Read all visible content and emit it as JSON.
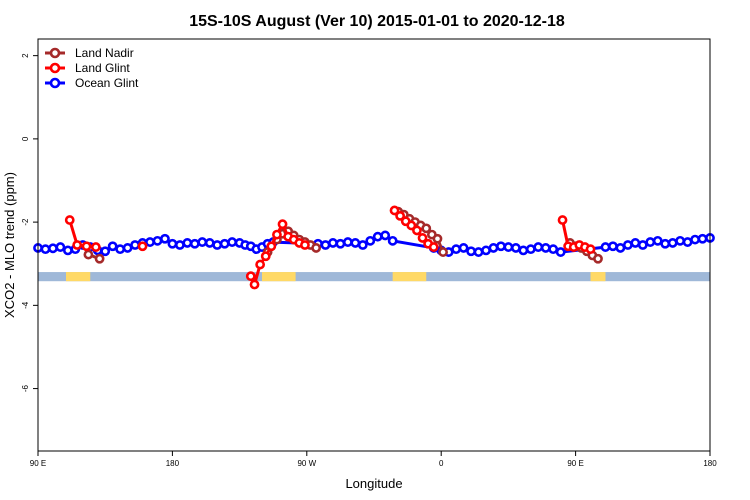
{
  "chart_data": {
    "type": "line",
    "title": "15S-10S August (Ver 10)   2015-01-01 to 2020-12-18",
    "xlabel": "Longitude",
    "ylabel": "XCO2 - MLO trend (ppm)",
    "xlim": [
      -180,
      180
    ],
    "ylim": [
      -7.5,
      2.4
    ],
    "x_ticks": [
      {
        "value": -180,
        "label": "90 E"
      },
      {
        "value": -108,
        "label": "180"
      },
      {
        "value": -36,
        "label": "90 W"
      },
      {
        "value": 36,
        "label": "0"
      },
      {
        "value": 108,
        "label": "90 E"
      },
      {
        "value": 180,
        "label": "180"
      }
    ],
    "y_ticks": [
      {
        "value": 2,
        "label": "2"
      },
      {
        "value": 0,
        "label": "0"
      },
      {
        "value": -2,
        "label": "-2"
      },
      {
        "value": -4,
        "label": "-4"
      },
      {
        "value": -6,
        "label": "-6"
      }
    ],
    "grid": false,
    "legend_position": "top-left",
    "series": [
      {
        "name": "Land Nadir",
        "color": "#a52a2a",
        "x": [
          -153,
          -147
        ],
        "y": [
          -2.78,
          -2.88
        ],
        "extra_segments": [
          {
            "x": [
              -57,
              -52,
              -49,
              -46,
              -43,
              -40,
              -37,
              -34,
              -31
            ],
            "y": [
              -2.72,
              -2.42,
              -2.28,
              -2.22,
              -2.32,
              -2.42,
              -2.48,
              -2.55,
              -2.62
            ]
          },
          {
            "x": [
              13,
              16,
              19,
              22,
              25,
              28,
              31,
              34,
              37
            ],
            "y": [
              -1.75,
              -1.82,
              -1.92,
              -2.0,
              -2.08,
              -2.15,
              -2.3,
              -2.4,
              -2.72
            ]
          },
          {
            "x": [
              105,
              108,
              111,
              114,
              117,
              120
            ],
            "y": [
              -2.5,
              -2.58,
              -2.62,
              -2.7,
              -2.8,
              -2.88
            ]
          }
        ]
      },
      {
        "name": "Land Glint",
        "color": "#ff0000",
        "x": [
          -163,
          -159,
          -154,
          -149
        ],
        "y": [
          -1.95,
          -2.55,
          -2.58,
          -2.6
        ],
        "extra_segments": [
          {
            "x": [
              -66,
              -64,
              -61,
              -58,
              -55,
              -52,
              -49,
              -46,
              -43,
              -40,
              -37
            ],
            "y": [
              -3.3,
              -3.5,
              -3.02,
              -2.82,
              -2.58,
              -2.3,
              -2.05,
              -2.35,
              -2.42,
              -2.5,
              -2.55
            ]
          },
          {
            "x": [
              11,
              14,
              17,
              20,
              23,
              26,
              29,
              32
            ],
            "y": [
              -1.72,
              -1.85,
              -1.98,
              -2.08,
              -2.2,
              -2.38,
              -2.52,
              -2.6
            ]
          },
          {
            "x": [
              -124
            ],
            "y": [
              -2.58
            ]
          },
          {
            "x": [
              101,
              104,
              107,
              110,
              113,
              116
            ],
            "y": [
              -1.95,
              -2.58,
              -2.6,
              -2.55,
              -2.6,
              -2.65
            ]
          }
        ]
      },
      {
        "name": "Ocean Glint",
        "color": "#0000ff",
        "x": [
          -180,
          -176,
          -172,
          -168,
          -164,
          -160,
          -156,
          -152,
          -148,
          -144,
          -140,
          -136,
          -132,
          -128,
          -124,
          -120,
          -116,
          -112,
          -108,
          -104,
          -100,
          -96,
          -92,
          -88,
          -84,
          -80,
          -76,
          -72,
          -69,
          -66,
          -63,
          -60,
          -57,
          -54,
          -30,
          -26,
          -22,
          -18,
          -14,
          -10,
          -6,
          -2,
          2,
          6,
          10,
          32,
          36,
          40,
          44,
          48,
          52,
          56,
          60,
          64,
          68,
          72,
          76,
          80,
          84,
          88,
          92,
          96,
          100,
          124,
          128,
          132,
          136,
          140,
          144,
          148,
          152,
          156,
          160,
          164,
          168,
          172,
          176,
          180
        ],
        "y": [
          -2.62,
          -2.65,
          -2.63,
          -2.6,
          -2.68,
          -2.65,
          -2.55,
          -2.6,
          -2.68,
          -2.7,
          -2.58,
          -2.65,
          -2.62,
          -2.55,
          -2.5,
          -2.48,
          -2.45,
          -2.4,
          -2.52,
          -2.55,
          -2.5,
          -2.52,
          -2.48,
          -2.5,
          -2.55,
          -2.52,
          -2.48,
          -2.5,
          -2.55,
          -2.58,
          -2.65,
          -2.6,
          -2.52,
          -2.48,
          -2.52,
          -2.55,
          -2.5,
          -2.52,
          -2.48,
          -2.5,
          -2.55,
          -2.45,
          -2.35,
          -2.32,
          -2.45,
          -2.62,
          -2.68,
          -2.72,
          -2.65,
          -2.62,
          -2.7,
          -2.72,
          -2.68,
          -2.62,
          -2.58,
          -2.6,
          -2.62,
          -2.68,
          -2.65,
          -2.6,
          -2.62,
          -2.65,
          -2.72,
          -2.6,
          -2.58,
          -2.62,
          -2.55,
          -2.5,
          -2.55,
          -2.48,
          -2.45,
          -2.52,
          -2.5,
          -2.45,
          -2.48,
          -2.42,
          -2.4,
          -2.38
        ]
      }
    ],
    "map_strip": {
      "y_range": [
        -3.42,
        -3.2
      ],
      "ocean_color": "#9fb8d8",
      "land_color": "#ffd966",
      "land_spans": [
        [
          -165,
          -152
        ],
        [
          -60,
          -42
        ],
        [
          10,
          28
        ],
        [
          116,
          124
        ]
      ]
    }
  }
}
